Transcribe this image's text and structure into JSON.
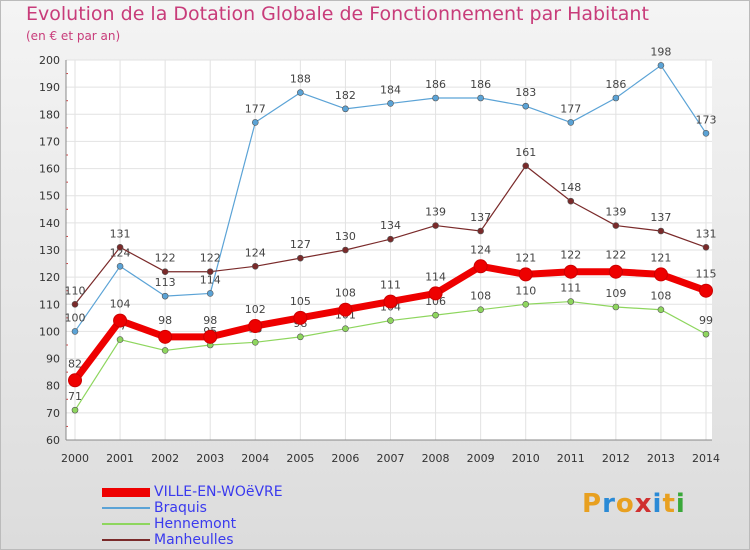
{
  "chart_data": {
    "type": "line",
    "title": "Evolution de la Dotation Globale de Fonctionnement par Habitant",
    "subtitle": "(en € et par an)",
    "xlabel": "",
    "ylabel": "",
    "ylim": [
      60,
      200
    ],
    "yticks": [
      60,
      70,
      80,
      90,
      100,
      110,
      120,
      130,
      140,
      150,
      160,
      170,
      180,
      190,
      200
    ],
    "categories": [
      "2000",
      "2001",
      "2002",
      "2003",
      "2004",
      "2005",
      "2006",
      "2007",
      "2008",
      "2009",
      "2010",
      "2011",
      "2012",
      "2013",
      "2014"
    ],
    "grid": true,
    "legend_position": "bottom-left",
    "series": [
      {
        "name": "Braquis",
        "color": "#5ba3d6",
        "values": [
          100,
          124,
          113,
          114,
          177,
          188,
          182,
          184,
          186,
          186,
          183,
          177,
          186,
          198,
          173
        ]
      },
      {
        "name": "Hennemont",
        "color": "#8ed65e",
        "values": [
          71,
          97,
          93,
          95,
          96,
          98,
          101,
          104,
          106,
          108,
          110,
          111,
          109,
          108,
          99
        ]
      },
      {
        "name": "Manheulles",
        "color": "#7a2a2a",
        "values": [
          110,
          131,
          122,
          122,
          124,
          127,
          130,
          134,
          139,
          137,
          161,
          148,
          139,
          137,
          131
        ]
      },
      {
        "name": "VILLE-EN-WOëVRE",
        "color": "#ee0000",
        "values": [
          82,
          104,
          98,
          98,
          102,
          105,
          108,
          111,
          114,
          124,
          121,
          122,
          122,
          121,
          115
        ]
      }
    ],
    "legend_order": [
      "VILLE-EN-WOëVRE",
      "Braquis",
      "Hennemont",
      "Manheulles"
    ]
  },
  "logo": {
    "letters": [
      "P",
      "r",
      "o",
      "x",
      "i",
      "t",
      "i"
    ],
    "colors": [
      "#e8a020",
      "#2a8ad6",
      "#e8a020",
      "#d03030",
      "#2a8ad6",
      "#e8a020",
      "#3aa83a"
    ]
  }
}
